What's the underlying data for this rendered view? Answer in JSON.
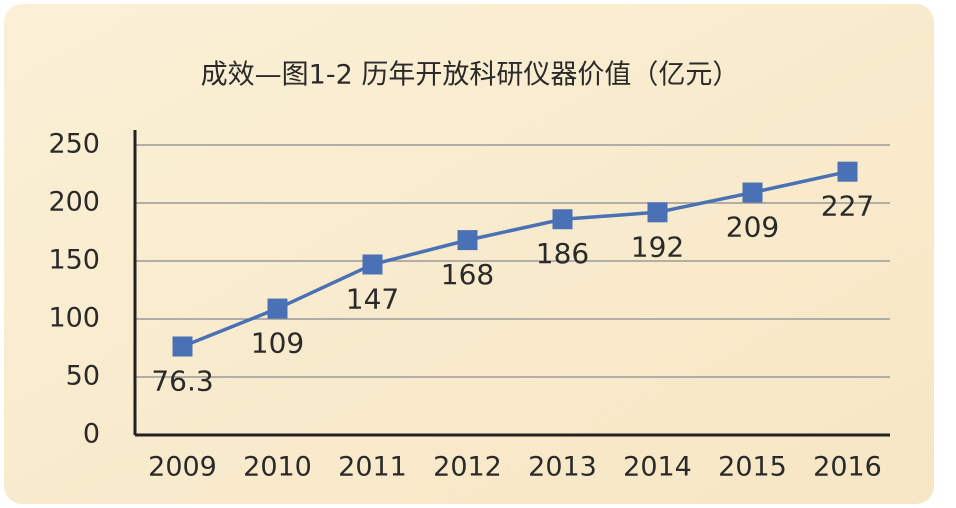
{
  "chart_data": {
    "type": "line",
    "title": "成效—图1-2  历年开放科研仪器价值（亿元）",
    "categories": [
      "2009",
      "2010",
      "2011",
      "2012",
      "2013",
      "2014",
      "2015",
      "2016"
    ],
    "values": [
      76.3,
      109,
      147,
      168,
      186,
      192,
      209,
      227
    ],
    "color": "#4a70b5",
    "ylim": [
      0,
      250
    ],
    "yticks": [
      0,
      50,
      100,
      150,
      200,
      250
    ],
    "grid": true
  }
}
